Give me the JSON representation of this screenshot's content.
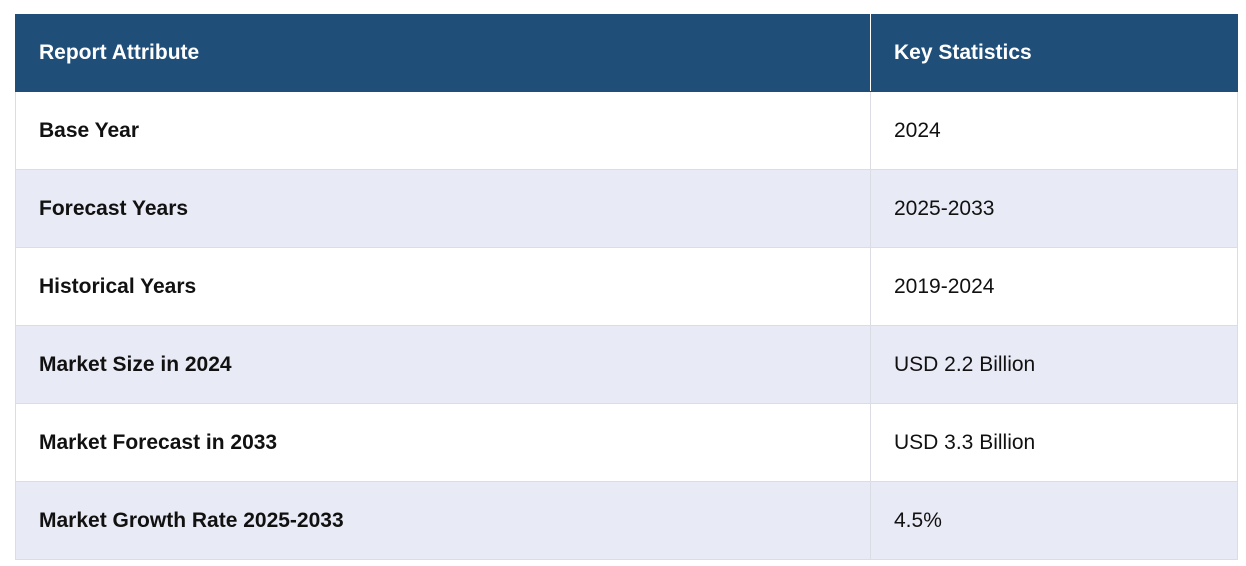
{
  "header": {
    "col1": "Report Attribute",
    "col2": "Key Statistics"
  },
  "rows": [
    {
      "attribute": "Base Year",
      "value": "2024"
    },
    {
      "attribute": "Forecast Years",
      "value": "2025-2033"
    },
    {
      "attribute": "Historical Years",
      "value": "2019-2024"
    },
    {
      "attribute": "Market Size in 2024",
      "value": "USD 2.2 Billion"
    },
    {
      "attribute": "Market Forecast in 2033",
      "value": "USD 3.3 Billion"
    },
    {
      "attribute": "Market Growth Rate 2025-2033",
      "value": "4.5%"
    }
  ],
  "colors": {
    "header_bg": "#1f4e79",
    "row_alt_bg": "#e8eaf5"
  }
}
